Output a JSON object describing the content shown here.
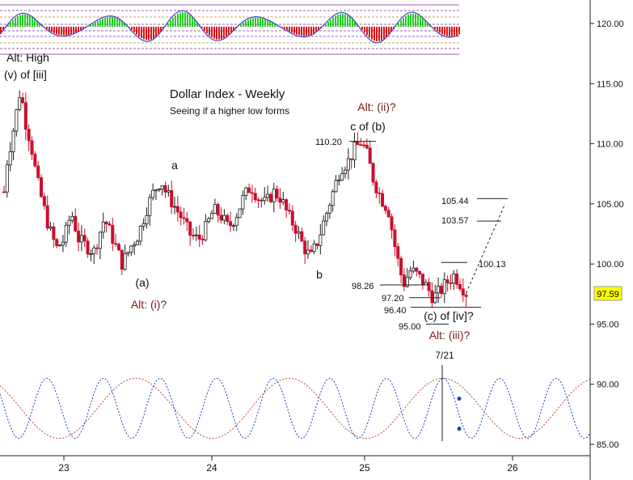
{
  "chart_data": {
    "type": "candlestick",
    "title": "Dollar Index - Weekly",
    "subtitle": "Seeing if a higher low forms",
    "ylim": [
      84,
      123
    ],
    "xlim": [
      22.6,
      26.5
    ],
    "grid": false,
    "y_ticks": [
      "85.00",
      "90.00",
      "95.00",
      "100.00",
      "105.00",
      "110.00",
      "115.00",
      "120.00"
    ],
    "y_tick_values": [
      85,
      90,
      95,
      100,
      105,
      110,
      115,
      120
    ],
    "x_ticks": [
      "23",
      "24",
      "25",
      "26"
    ],
    "x_tick_values": [
      23,
      24,
      25,
      26
    ],
    "current_price": "97.59",
    "current_price_value": 97.59,
    "price_path": [
      [
        22.6,
        106.0
      ],
      [
        22.62,
        108.5
      ],
      [
        22.66,
        111.0
      ],
      [
        22.71,
        114.6
      ],
      [
        22.74,
        112.0
      ],
      [
        22.78,
        110.0
      ],
      [
        22.82,
        107.0
      ],
      [
        22.86,
        105.0
      ],
      [
        22.9,
        103.0
      ],
      [
        22.95,
        101.3
      ],
      [
        23.0,
        102.0
      ],
      [
        23.05,
        104.3
      ],
      [
        23.1,
        102.0
      ],
      [
        23.15,
        101.5
      ],
      [
        23.2,
        101.0
      ],
      [
        23.27,
        103.8
      ],
      [
        23.33,
        102.0
      ],
      [
        23.39,
        100.0
      ],
      [
        23.45,
        101.5
      ],
      [
        23.5,
        102.5
      ],
      [
        23.55,
        104.5
      ],
      [
        23.6,
        106.0
      ],
      [
        23.65,
        107.0
      ],
      [
        23.68,
        106.0
      ],
      [
        23.73,
        105.0
      ],
      [
        23.78,
        104.0
      ],
      [
        23.84,
        102.5
      ],
      [
        23.9,
        102.0
      ],
      [
        23.95,
        103.0
      ],
      [
        24.0,
        104.5
      ],
      [
        24.05,
        104.0
      ],
      [
        24.1,
        103.0
      ],
      [
        24.15,
        104.0
      ],
      [
        24.2,
        105.5
      ],
      [
        24.25,
        106.5
      ],
      [
        24.3,
        105.5
      ],
      [
        24.35,
        105.0
      ],
      [
        24.4,
        106.0
      ],
      [
        24.45,
        105.5
      ],
      [
        24.5,
        104.0
      ],
      [
        24.55,
        103.0
      ],
      [
        24.6,
        101.5
      ],
      [
        24.65,
        100.5
      ],
      [
        24.7,
        102.0
      ],
      [
        24.75,
        104.0
      ],
      [
        24.8,
        106.0
      ],
      [
        24.85,
        108.0
      ],
      [
        24.9,
        108.5
      ],
      [
        24.94,
        109.5
      ],
      [
        24.99,
        110.2
      ],
      [
        25.03,
        109.0
      ],
      [
        25.07,
        107.0
      ],
      [
        25.12,
        105.5
      ],
      [
        25.17,
        104.5
      ],
      [
        25.22,
        101.0
      ],
      [
        25.27,
        98.3
      ],
      [
        25.32,
        99.5
      ],
      [
        25.37,
        99.0
      ],
      [
        25.42,
        98.2
      ],
      [
        25.47,
        97.2
      ],
      [
        25.52,
        97.8
      ],
      [
        25.57,
        98.6
      ],
      [
        25.61,
        99.1
      ],
      [
        25.65,
        98.4
      ],
      [
        25.69,
        97.59
      ]
    ],
    "oscillator": {
      "ylim": [
        117,
        122
      ]
    },
    "cycles": {
      "ylim": [
        85,
        91
      ],
      "short_cycle_center_line": 0,
      "markers": [
        {
          "x": 25.64,
          "value": 88.8
        },
        {
          "x": 25.64,
          "value": 86.3
        }
      ]
    },
    "annotations": [
      {
        "text": "Alt: High",
        "x": 22.5,
        "y": 117.1
      },
      {
        "text": "(v) of [iii]",
        "x": 22.5,
        "y": 115.4
      },
      {
        "text": "a",
        "x": 23.7,
        "y": 108.3
      },
      {
        "text": "(a)",
        "x": 23.48,
        "y": 98.1
      },
      {
        "text": "Alt: (i)?",
        "x": 23.48,
        "y": 96.1
      },
      {
        "text": "b",
        "x": 24.72,
        "y": 98.9
      },
      {
        "text": "Alt: (ii)?",
        "x": 25.07,
        "y": 113.0
      },
      {
        "text": "c of (b)",
        "x": 25.02,
        "y": 111.3
      },
      {
        "text": "(c) of [iv]?",
        "x": 25.55,
        "y": 95.6
      },
      {
        "text": "Alt: (iii)?",
        "x": 25.55,
        "y": 94.0
      },
      {
        "text": "7/21",
        "x": 25.54,
        "y": 92.3
      }
    ],
    "levels": [
      {
        "label": "110.20",
        "value": 110.2
      },
      {
        "label": "105.44",
        "value": 105.44
      },
      {
        "label": "103.57",
        "value": 103.57
      },
      {
        "label": "100.13",
        "value": 100.13
      },
      {
        "label": "98.26",
        "value": 98.26
      },
      {
        "label": "97.20",
        "value": 97.2
      },
      {
        "label": "96.40",
        "value": 96.4
      },
      {
        "label": "95.00",
        "value": 95.0
      }
    ],
    "projection": [
      [
        25.69,
        97.59
      ],
      [
        25.95,
        105.0
      ]
    ]
  },
  "colors": {
    "bull_candle": "#1a1a1a",
    "bear_candle": "#c8102e",
    "hist_up": "#22cc22",
    "hist_down": "#dd1111",
    "oscillator_line": "#4444cc",
    "level_dashed": "#7a2e8c",
    "level_dashed_gold": "#b08a2e",
    "cycle_blue": "#1f3fbf",
    "cycle_red": "#b8463a",
    "alt_text": "#7a1a1a",
    "current_price_bg": "#ffff00"
  },
  "icons": {
    "cycle_marker": "blue-dot"
  }
}
